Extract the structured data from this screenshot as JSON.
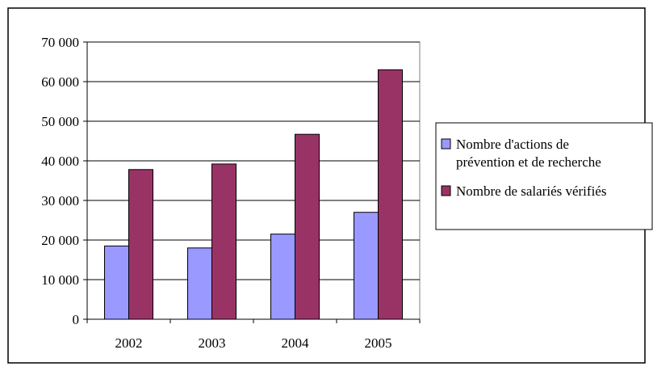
{
  "chart_data": {
    "type": "bar",
    "title": "",
    "xlabel": "",
    "ylabel": "",
    "categories": [
      "2002",
      "2003",
      "2004",
      "2005"
    ],
    "ylim": [
      0,
      70000
    ],
    "yticks": [
      0,
      10000,
      20000,
      30000,
      40000,
      50000,
      60000,
      70000
    ],
    "ytick_labels": [
      "0",
      "10 000",
      "20 000",
      "30 000",
      "40 000",
      "50 000",
      "60 000",
      "70 000"
    ],
    "grid": true,
    "legend_position": "right",
    "series": [
      {
        "name": "Nombre d'actions de prévention et de recherche",
        "legend_lines": [
          "Nombre d'actions de",
          "prévention et de recherche"
        ],
        "color": "#9999ff",
        "values": [
          18500,
          18000,
          21500,
          27000
        ]
      },
      {
        "name": "Nombre de salariés vérifiés",
        "legend_lines": [
          "Nombre de salariés vérifiés"
        ],
        "color": "#993366",
        "values": [
          37800,
          39200,
          46700,
          63000
        ]
      }
    ]
  }
}
